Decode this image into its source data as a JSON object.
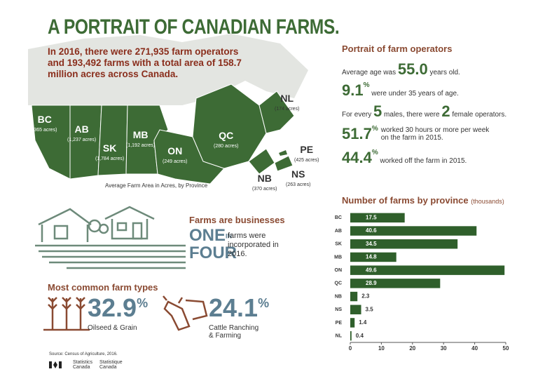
{
  "header": {
    "title": "A PORTRAIT OF CANADIAN FARMS.",
    "intro": "In 2016, there were 271,935 farm operators and 193,492 farms with a total area of 158.7 million acres across Canada."
  },
  "map": {
    "caption": "Average Farm Area in Acres, by Province",
    "provinces": [
      {
        "code": "BC",
        "area": "(365 acres)"
      },
      {
        "code": "AB",
        "area": "(1,237 acres)"
      },
      {
        "code": "SK",
        "area": "(1,784 acres)"
      },
      {
        "code": "MB",
        "area": "(1,192 acres)"
      },
      {
        "code": "ON",
        "area": "(249 acres)"
      },
      {
        "code": "QC",
        "area": "(280 acres)"
      },
      {
        "code": "NL",
        "area": "(174 acres)"
      },
      {
        "code": "PE",
        "area": "(425 acres)"
      },
      {
        "code": "NB",
        "area": "(370 acres)"
      },
      {
        "code": "NS",
        "area": "(263 acres)"
      }
    ]
  },
  "operators": {
    "heading": "Portrait of farm operators",
    "age": {
      "before": "Average age was",
      "value": "55.0",
      "after": "years old."
    },
    "young": {
      "value": "9.1",
      "unit": "%",
      "after": "were under 35 years of age."
    },
    "ratio": {
      "before": "For every",
      "males": "5",
      "middle": "males, there were",
      "females": "2",
      "after": "female operators."
    },
    "hours": {
      "value": "51.7",
      "unit": "%",
      "after": "worked 30 hours or more per week on the farm in 2015."
    },
    "off": {
      "value": "44.4",
      "unit": "%",
      "after": "worked off the farm in 2015."
    }
  },
  "business": {
    "heading": "Farms are businesses",
    "one": "ONE",
    "in": "IN",
    "four": "FOUR",
    "text": "farms were incorporated in 2016."
  },
  "types": {
    "heading": "Most common farm types",
    "items": [
      {
        "value": "32.9",
        "unit": "%",
        "label": "Oilseed & Grain"
      },
      {
        "value": "24.1",
        "unit": "%",
        "label": "Cattle Ranching & Farming"
      }
    ]
  },
  "footer": {
    "source": "Source: Census of Agriculture, 2016.",
    "en": "Statistics Canada",
    "fr": "Statistique Canada"
  },
  "chart_data": {
    "type": "bar",
    "title": "Number of farms by province",
    "subtitle": "(thousands)",
    "categories": [
      "BC",
      "AB",
      "SK",
      "MB",
      "ON",
      "QC",
      "NB",
      "NS",
      "PE",
      "NL"
    ],
    "values": [
      17.5,
      40.6,
      34.5,
      14.8,
      49.6,
      28.9,
      2.3,
      3.5,
      1.4,
      0.4
    ],
    "color": "#2f5f2b",
    "xlim": [
      0,
      50
    ],
    "xticks": [
      0,
      10,
      20,
      30,
      40,
      50
    ]
  }
}
